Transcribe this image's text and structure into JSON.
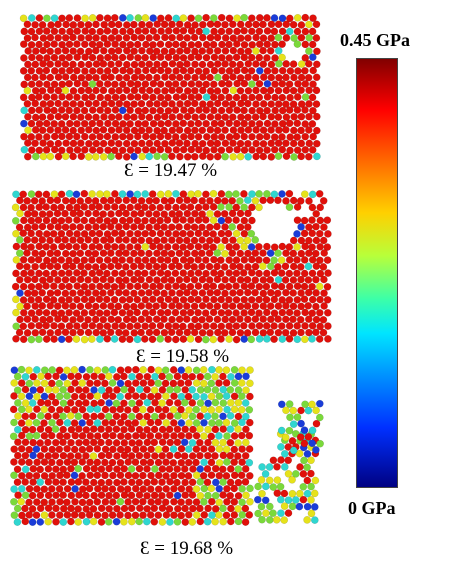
{
  "panels": [
    {
      "strain_label": "Ɛ = 19.47 %"
    },
    {
      "strain_label": "Ɛ = 19.58 %"
    },
    {
      "strain_label": "Ɛ = 19.68 %"
    }
  ],
  "colorbar": {
    "max_label": "0.45 GPa",
    "min_label": "0 GPa",
    "colors": [
      "#7f0000",
      "#ff0000",
      "#ff6a00",
      "#ffd000",
      "#b8ff3a",
      "#3cffa8",
      "#00e5ff",
      "#0090ff",
      "#0030ff",
      "#000080"
    ]
  },
  "particle_colors": {
    "high": "#e0100a",
    "yellow": "#e6e21a",
    "green": "#7ad93a",
    "cyan": "#2fd6d0",
    "blue": "#1a3cd8"
  }
}
